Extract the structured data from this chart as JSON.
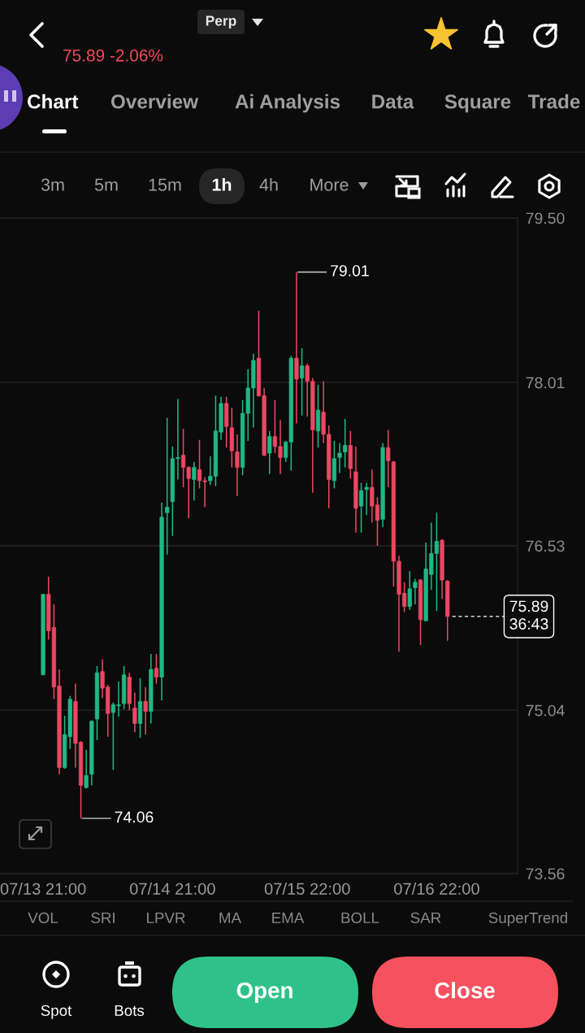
{
  "chart_data": {
    "type": "candlestick",
    "categories": [
      "07/13 21:00",
      null,
      null,
      null,
      null,
      null,
      null,
      null,
      null,
      null,
      null,
      null,
      null,
      null,
      null,
      null,
      null,
      null,
      null,
      null,
      null,
      null,
      null,
      null,
      "07/14 21:00",
      null,
      null,
      null,
      null,
      null,
      null,
      null,
      null,
      null,
      null,
      null,
      null,
      null,
      null,
      null,
      null,
      null,
      null,
      null,
      null,
      null,
      null,
      null,
      null,
      "07/15 22:00",
      null,
      null,
      null,
      null,
      null,
      null,
      null,
      null,
      null,
      null,
      null,
      null,
      null,
      null,
      null,
      null,
      null,
      null,
      null,
      null,
      null,
      null,
      null,
      "07/16 22:00",
      null,
      null
    ],
    "ohlc": [
      [
        75.36,
        76.09,
        75.36,
        76.09
      ],
      [
        76.09,
        76.25,
        75.68,
        75.76
      ],
      [
        75.79,
        76.0,
        75.14,
        75.25
      ],
      [
        75.26,
        75.41,
        74.46,
        74.52
      ],
      [
        74.52,
        74.99,
        74.51,
        74.82
      ],
      [
        74.8,
        75.17,
        74.69,
        75.14
      ],
      [
        75.12,
        75.28,
        74.52,
        74.74
      ],
      [
        74.75,
        74.76,
        74.06,
        74.36
      ],
      [
        74.34,
        74.68,
        74.33,
        74.45
      ],
      [
        74.46,
        74.95,
        74.36,
        74.94
      ],
      [
        74.96,
        75.44,
        74.77,
        75.38
      ],
      [
        75.39,
        75.5,
        75.15,
        75.24
      ],
      [
        75.25,
        75.27,
        74.8,
        75.01
      ],
      [
        75.02,
        75.11,
        74.5,
        75.09
      ],
      [
        75.08,
        75.3,
        74.98,
        75.09
      ],
      [
        75.1,
        75.44,
        75.05,
        75.36
      ],
      [
        75.34,
        75.38,
        75.04,
        75.1
      ],
      [
        75.06,
        75.2,
        74.84,
        74.92
      ],
      [
        74.92,
        75.33,
        74.79,
        75.12
      ],
      [
        75.12,
        75.25,
        74.82,
        75.03
      ],
      [
        75.03,
        75.55,
        74.92,
        75.41
      ],
      [
        75.42,
        75.55,
        75.28,
        75.34
      ],
      [
        75.34,
        76.92,
        75.13,
        76.79
      ],
      [
        76.83,
        77.69,
        76.45,
        76.88
      ],
      [
        76.93,
        77.43,
        76.62,
        77.32
      ],
      [
        77.32,
        77.86,
        77.13,
        77.33
      ],
      [
        77.35,
        77.59,
        77.06,
        77.24
      ],
      [
        77.24,
        77.25,
        76.78,
        77.14
      ],
      [
        77.13,
        77.29,
        76.94,
        77.24
      ],
      [
        77.22,
        77.49,
        77.05,
        77.12
      ],
      [
        77.12,
        77.15,
        76.88,
        77.11
      ],
      [
        77.12,
        77.34,
        77.08,
        77.16
      ],
      [
        77.16,
        77.89,
        77.07,
        77.57
      ],
      [
        77.56,
        77.88,
        77.49,
        77.82
      ],
      [
        77.82,
        77.88,
        77.42,
        77.61
      ],
      [
        77.6,
        77.78,
        77.24,
        77.39
      ],
      [
        77.38,
        77.54,
        76.98,
        77.24
      ],
      [
        77.24,
        77.85,
        77.17,
        77.73
      ],
      [
        77.73,
        78.13,
        77.48,
        77.96
      ],
      [
        77.96,
        78.27,
        77.6,
        78.21
      ],
      [
        78.23,
        78.66,
        77.88,
        77.89
      ],
      [
        77.89,
        77.96,
        77.34,
        77.35
      ],
      [
        77.37,
        77.57,
        77.18,
        77.52
      ],
      [
        77.52,
        77.85,
        77.37,
        77.43
      ],
      [
        77.43,
        77.67,
        77.18,
        77.33
      ],
      [
        77.33,
        77.48,
        77.29,
        77.47
      ],
      [
        77.47,
        78.25,
        77.21,
        78.23
      ],
      [
        78.23,
        79.01,
        77.64,
        78.04
      ],
      [
        78.05,
        78.32,
        77.71,
        78.16
      ],
      [
        78.16,
        78.18,
        77.7,
        78.02
      ],
      [
        78.02,
        78.05,
        77.01,
        77.58
      ],
      [
        77.57,
        77.99,
        77.42,
        77.76
      ],
      [
        77.74,
        78.02,
        77.46,
        77.54
      ],
      [
        77.54,
        77.62,
        76.87,
        77.13
      ],
      [
        77.12,
        77.48,
        77.05,
        77.32
      ],
      [
        77.33,
        77.46,
        77.19,
        77.37
      ],
      [
        77.38,
        77.68,
        77.24,
        77.44
      ],
      [
        77.44,
        77.57,
        77.14,
        77.23
      ],
      [
        77.2,
        77.43,
        76.65,
        76.87
      ],
      [
        76.89,
        77.1,
        76.65,
        77.03
      ],
      [
        77.04,
        77.1,
        76.81,
        77.06
      ],
      [
        77.06,
        77.22,
        76.74,
        76.89
      ],
      [
        76.9,
        76.97,
        76.53,
        76.76
      ],
      [
        76.77,
        77.46,
        76.7,
        77.42
      ],
      [
        77.42,
        77.58,
        77.06,
        77.3
      ],
      [
        77.29,
        77.3,
        76.16,
        76.39
      ],
      [
        76.39,
        76.44,
        75.57,
        76.09
      ],
      [
        76.1,
        76.2,
        75.93,
        75.98
      ],
      [
        75.98,
        76.3,
        75.95,
        76.14
      ],
      [
        76.15,
        76.23,
        76.0,
        76.2
      ],
      [
        76.22,
        76.23,
        75.63,
        75.86
      ],
      [
        75.85,
        76.56,
        75.85,
        76.32
      ],
      [
        76.27,
        76.74,
        76.13,
        76.46
      ],
      [
        76.46,
        76.83,
        75.94,
        76.57
      ],
      [
        76.58,
        76.59,
        76.05,
        76.22
      ],
      [
        76.21,
        76.22,
        75.67,
        75.89
      ]
    ],
    "colors": [
      "#20b883",
      "#ec4763",
      "#ec4763",
      "#ec4763",
      "#20b883",
      "#20b883",
      "#ec4763",
      "#ec4763",
      "#20b883",
      "#20b883",
      "#20b883",
      "#ec4763",
      "#ec4763",
      "#20b883",
      "#20b883",
      "#20b883",
      "#ec4763",
      "#ec4763",
      "#20b883",
      "#ec4763",
      "#20b883",
      "#ec4763",
      "#20b883",
      "#20b883",
      "#20b883",
      "#20b883",
      "#ec4763",
      "#ec4763",
      "#20b883",
      "#ec4763",
      "#ec4763",
      "#20b883",
      "#20b883",
      "#20b883",
      "#ec4763",
      "#ec4763",
      "#ec4763",
      "#20b883",
      "#20b883",
      "#20b883",
      "#ec4763",
      "#ec4763",
      "#20b883",
      "#ec4763",
      "#ec4763",
      "#20b883",
      "#20b883",
      "#ec4763",
      "#20b883",
      "#ec4763",
      "#ec4763",
      "#20b883",
      "#ec4763",
      "#ec4763",
      "#20b883",
      "#20b883",
      "#20b883",
      "#ec4763",
      "#ec4763",
      "#20b883",
      "#20b883",
      "#ec4763",
      "#ec4763",
      "#20b883",
      "#ec4763",
      "#ec4763",
      "#ec4763",
      "#ec4763",
      "#20b883",
      "#20b883",
      "#ec4763",
      "#20b883",
      "#20b883",
      "#20b883",
      "#ec4763",
      "#ec4763"
    ],
    "ylim": [
      73.56,
      79.5
    ],
    "yticks": [
      73.56,
      75.04,
      76.53,
      78.01,
      {
        "value": 79.5,
        "label": "79.50"
      }
    ],
    "grid": "y",
    "ref_lines": [
      {
        "axis": "y",
        "value": 75.89,
        "label": "75.89\n36:43",
        "color": "#ffffff",
        "line_style": "dashed"
      }
    ],
    "annotations": [
      "Perp",
      "75.89 -2.06%",
      "Chart",
      "Overview",
      "Ai Analysis",
      "Data",
      "Square",
      "Trade",
      "3m",
      "5m",
      "15m",
      "1h",
      "4h",
      "More",
      "VOL",
      "SRI",
      "LPVR",
      "MA",
      "EMA",
      "BOLL",
      "SAR",
      "SuperTrend",
      "Spot",
      "Bots",
      "Open",
      "Close",
      "79.01",
      "74.06"
    ]
  }
}
